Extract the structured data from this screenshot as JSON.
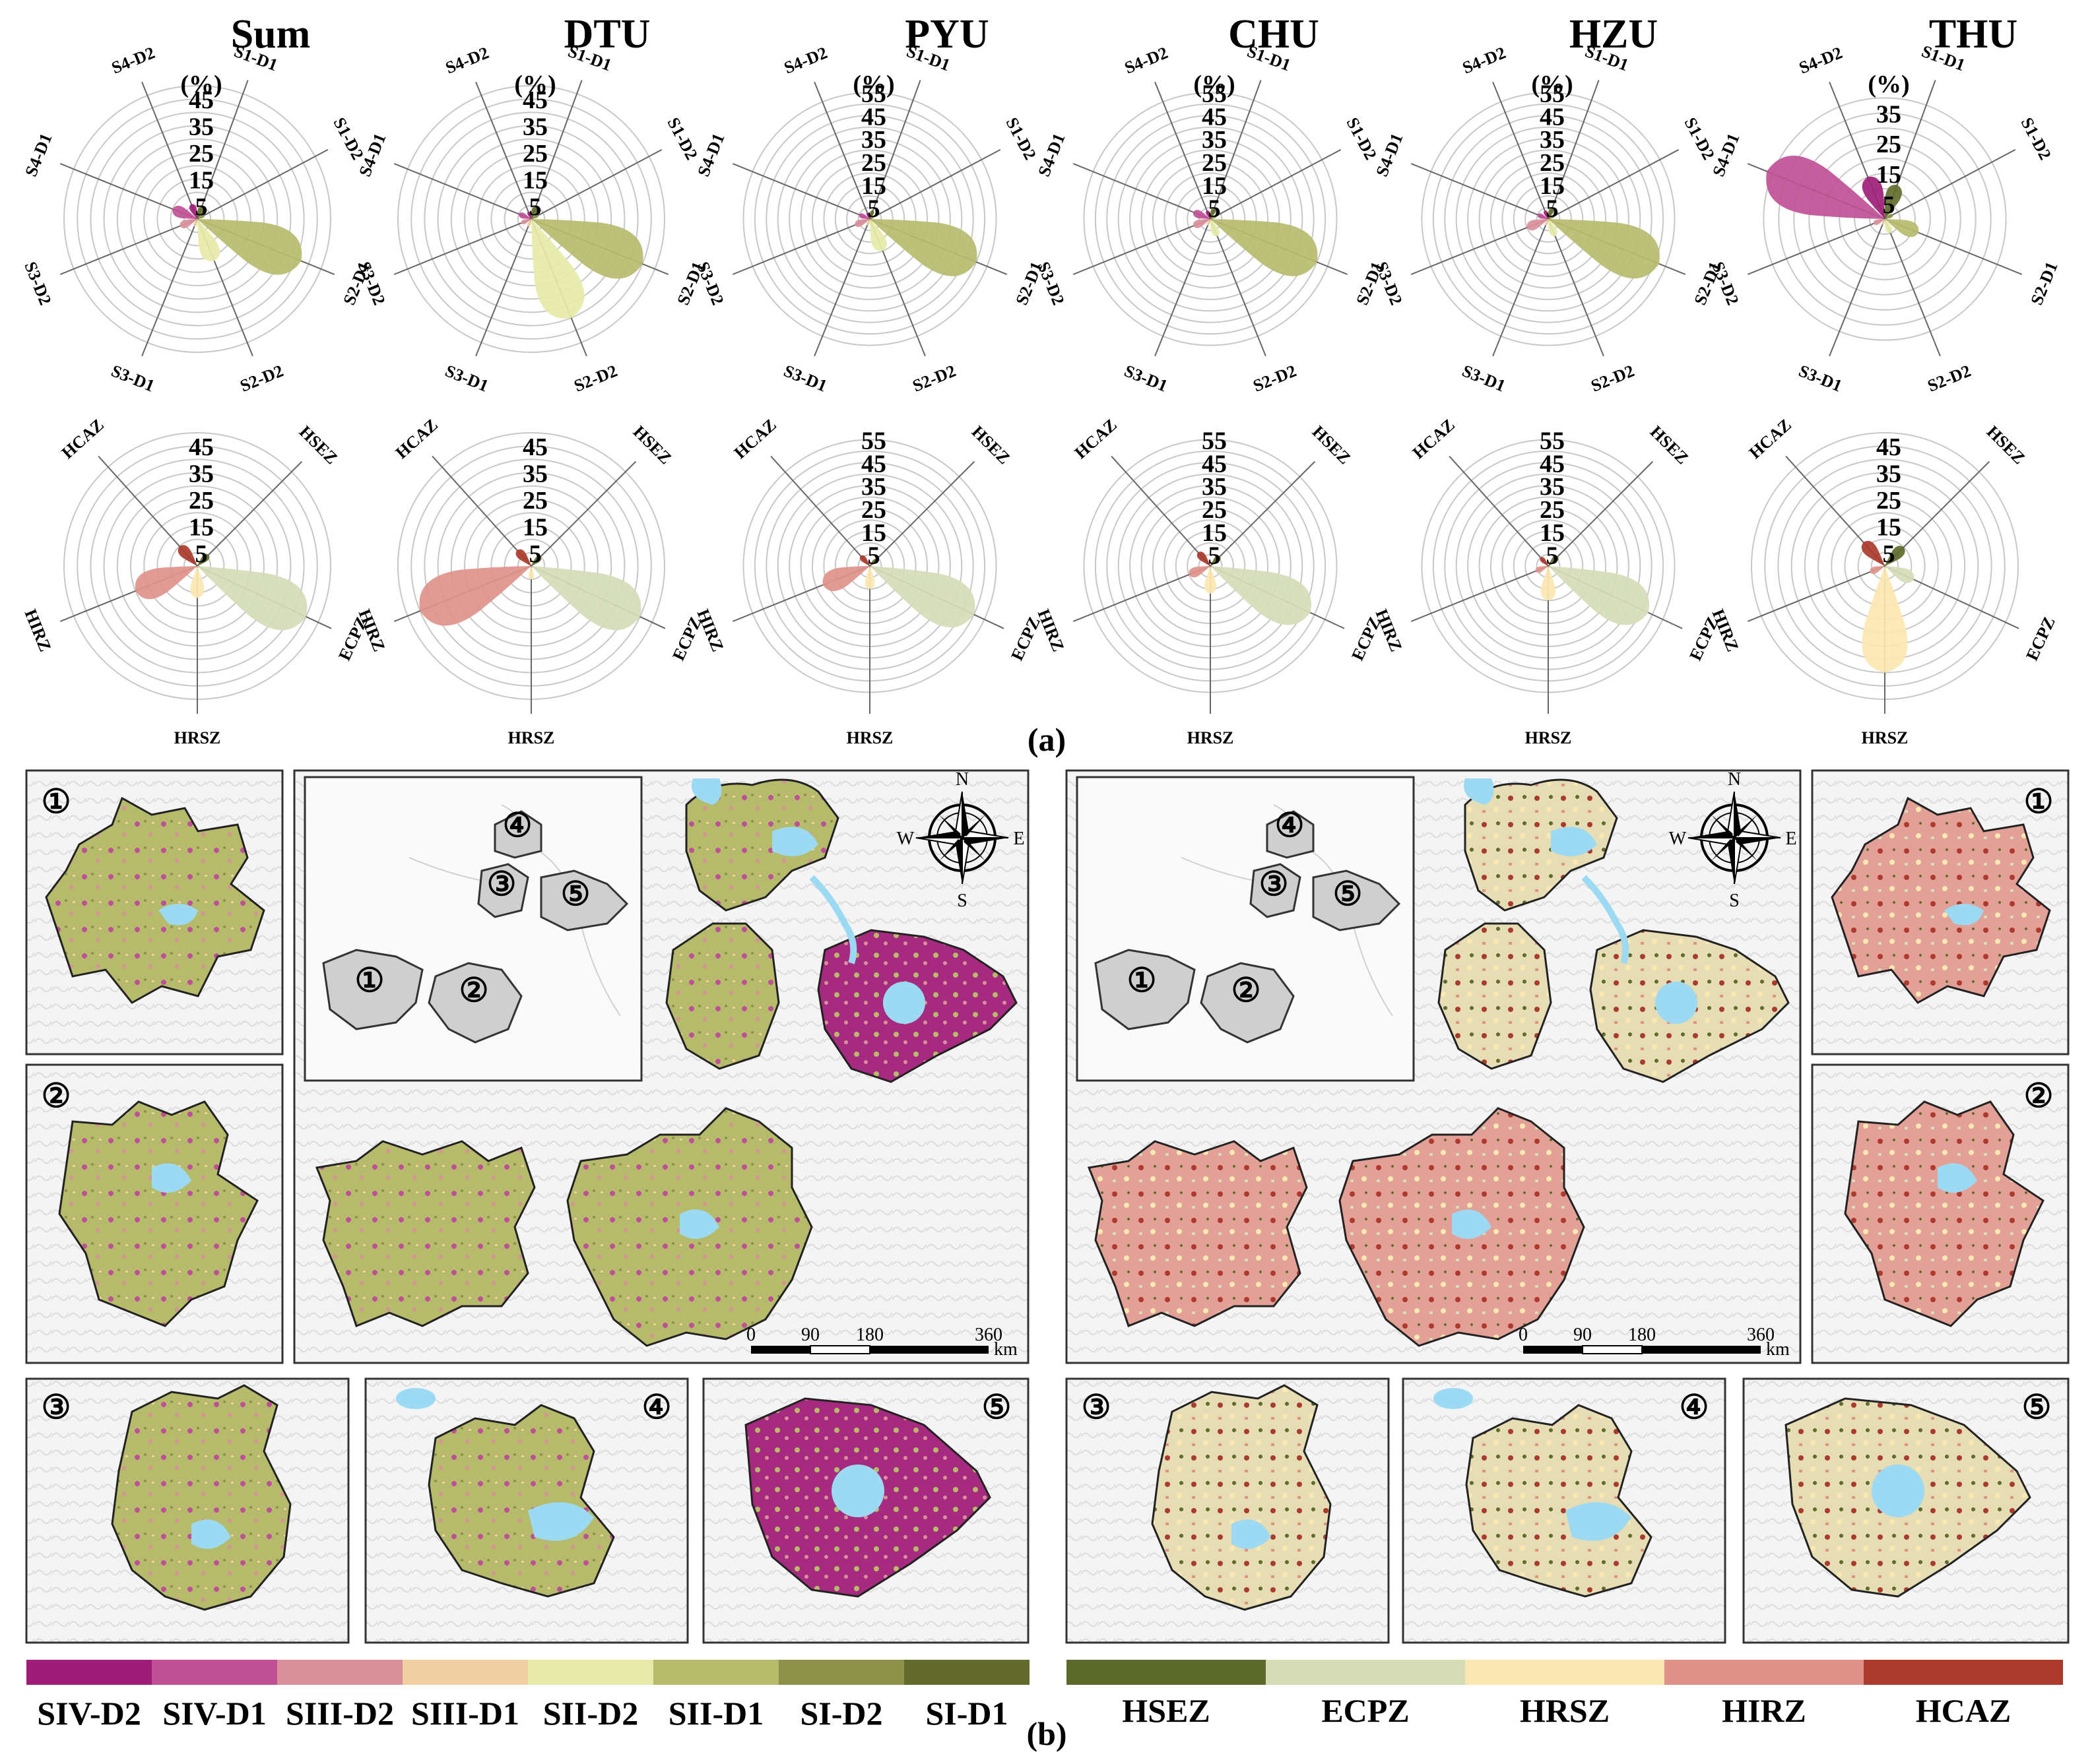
{
  "figure_label_a": "(a)",
  "figure_label_b": "(b)",
  "percent_symbol": "(%)",
  "km_unit": "km",
  "compass": {
    "n": "N",
    "s": "S",
    "e": "E",
    "w": "W"
  },
  "scale_bar": [
    "0",
    "90",
    "180",
    "360"
  ],
  "map_inset_labels": [
    "①",
    "②",
    "③",
    "④",
    "⑤"
  ],
  "colors": {
    "SIV-D2": "#9e1e77",
    "SIV-D1": "#c05096",
    "SIII-D2": "#d9909a",
    "SIII-D1": "#f0cfa2",
    "SII-D2": "#e6eaa8",
    "SII-D1": "#b6bb6c",
    "SI-D2": "#8c9249",
    "SI-D1": "#626b2c",
    "HSEZ": "#5c6b2b",
    "ECPZ": "#d5dcb6",
    "HRSZ": "#fbe7b2",
    "HIRZ": "#e0928a",
    "HCAZ": "#ab3a2c",
    "water": "#9bdaf2"
  },
  "legend_left": [
    "SIV-D2",
    "SIV-D1",
    "SIII-D2",
    "SIII-D1",
    "SII-D2",
    "SII-D1",
    "SI-D2",
    "SI-D1"
  ],
  "legend_right": [
    "HSEZ",
    "ECPZ",
    "HRSZ",
    "HIRZ",
    "HCAZ"
  ],
  "chart_data": [
    {
      "type": "polar-area",
      "title": "Sum",
      "panel": "stage-degree",
      "categories": [
        "S1-D1",
        "S1-D2",
        "S2-D1",
        "S2-D2",
        "S3-D1",
        "S3-D2",
        "S4-D1",
        "S4-D2"
      ],
      "values": [
        5,
        3,
        42,
        17,
        3,
        7,
        10,
        6
      ],
      "ticks": [
        5,
        15,
        25,
        35,
        45
      ],
      "rmax": 50
    },
    {
      "type": "polar-area",
      "title": "DTU",
      "panel": "stage-degree",
      "categories": [
        "S1-D1",
        "S1-D2",
        "S2-D1",
        "S2-D2",
        "S3-D1",
        "S3-D2",
        "S4-D1",
        "S4-D2"
      ],
      "values": [
        5,
        3,
        45,
        40,
        3,
        4,
        5,
        3
      ],
      "ticks": [
        5,
        15,
        25,
        35,
        45
      ],
      "rmax": 50
    },
    {
      "type": "polar-area",
      "title": "PYU",
      "panel": "stage-degree",
      "categories": [
        "S1-D1",
        "S1-D2",
        "S2-D1",
        "S2-D2",
        "S3-D1",
        "S3-D2",
        "S4-D1",
        "S4-D2"
      ],
      "values": [
        4,
        2,
        50,
        15,
        3,
        7,
        5,
        3
      ],
      "ticks": [
        5,
        15,
        25,
        35,
        45,
        55
      ],
      "rmax": 58
    },
    {
      "type": "polar-area",
      "title": "CHU",
      "panel": "stage-degree",
      "categories": [
        "S1-D1",
        "S1-D2",
        "S2-D1",
        "S2-D2",
        "S3-D1",
        "S3-D2",
        "S4-D1",
        "S4-D2"
      ],
      "values": [
        5,
        3,
        50,
        8,
        3,
        8,
        8,
        4
      ],
      "ticks": [
        5,
        15,
        25,
        35,
        45,
        55
      ],
      "rmax": 58
    },
    {
      "type": "polar-area",
      "title": "HZU",
      "panel": "stage-degree",
      "categories": [
        "S1-D1",
        "S1-D2",
        "S2-D1",
        "S2-D2",
        "S3-D1",
        "S3-D2",
        "S4-D1",
        "S4-D2"
      ],
      "values": [
        5,
        3,
        52,
        8,
        3,
        10,
        5,
        4
      ],
      "ticks": [
        5,
        15,
        25,
        35,
        45,
        55
      ],
      "rmax": 58
    },
    {
      "type": "polar-area",
      "title": "THU",
      "panel": "stage-degree",
      "categories": [
        "S1-D1",
        "S1-D2",
        "S2-D1",
        "S2-D2",
        "S3-D1",
        "S3-D2",
        "S4-D1",
        "S4-D2"
      ],
      "values": [
        12,
        3,
        12,
        5,
        2,
        4,
        42,
        15
      ],
      "ticks": [
        5,
        15,
        25,
        35
      ],
      "rmax": 44
    },
    {
      "type": "polar-area",
      "title": "Sum",
      "panel": "zones",
      "categories": [
        "HSEZ",
        "ECPZ",
        "HRSZ",
        "HIRZ",
        "HCAZ"
      ],
      "values": [
        6,
        45,
        12,
        25,
        10
      ],
      "ticks": [
        5,
        15,
        25,
        35,
        45
      ],
      "rmax": 50
    },
    {
      "type": "polar-area",
      "title": "DTU",
      "panel": "zones",
      "categories": [
        "HSEZ",
        "ECPZ",
        "HRSZ",
        "HIRZ",
        "HCAZ"
      ],
      "values": [
        5,
        45,
        5,
        45,
        8
      ],
      "ticks": [
        5,
        15,
        25,
        35,
        45
      ],
      "rmax": 50
    },
    {
      "type": "polar-area",
      "title": "PYU",
      "panel": "zones",
      "categories": [
        "HSEZ",
        "ECPZ",
        "HRSZ",
        "HIRZ",
        "HCAZ"
      ],
      "values": [
        4,
        50,
        10,
        22,
        6
      ],
      "ticks": [
        5,
        15,
        25,
        35,
        45,
        55
      ],
      "rmax": 58
    },
    {
      "type": "polar-area",
      "title": "CHU",
      "panel": "zones",
      "categories": [
        "HSEZ",
        "ECPZ",
        "HRSZ",
        "HIRZ",
        "HCAZ"
      ],
      "values": [
        6,
        48,
        12,
        10,
        8
      ],
      "ticks": [
        5,
        15,
        25,
        35,
        45,
        55
      ],
      "rmax": 58
    },
    {
      "type": "polar-area",
      "title": "HZU",
      "panel": "zones",
      "categories": [
        "HSEZ",
        "ECPZ",
        "HRSZ",
        "HIRZ",
        "HCAZ"
      ],
      "values": [
        6,
        48,
        15,
        6,
        5
      ],
      "ticks": [
        5,
        15,
        25,
        35,
        45,
        55
      ],
      "rmax": 58
    },
    {
      "type": "polar-area",
      "title": "THU",
      "panel": "zones",
      "categories": [
        "HSEZ",
        "ECPZ",
        "HRSZ",
        "HIRZ",
        "HCAZ"
      ],
      "values": [
        10,
        12,
        40,
        6,
        12
      ],
      "ticks": [
        5,
        15,
        25,
        35,
        45
      ],
      "rmax": 50
    }
  ]
}
